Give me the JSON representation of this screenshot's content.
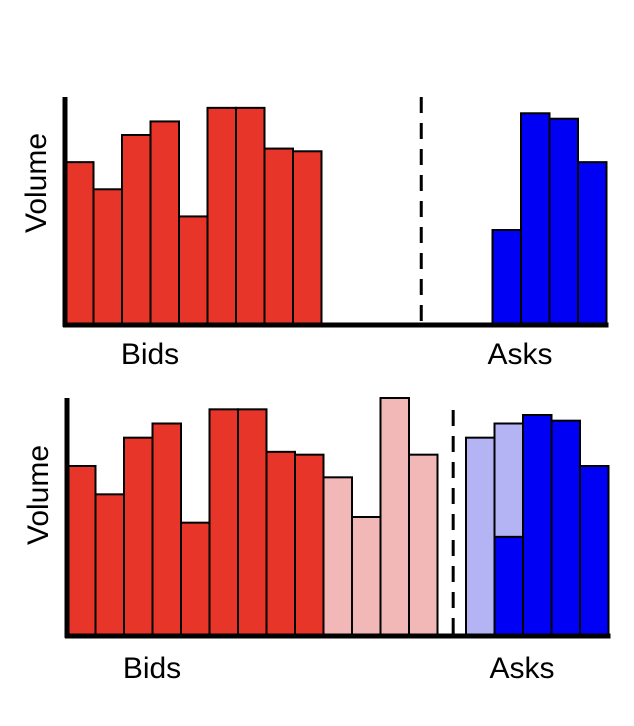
{
  "chart_data": [
    {
      "type": "bar",
      "ylabel": "Volume",
      "bids_label": "Bids",
      "asks_label": "Asks",
      "divider": "dashed",
      "slots": 19,
      "bids": [
        {
          "slot": 0,
          "value": 60,
          "shade": "dark"
        },
        {
          "slot": 1,
          "value": 50,
          "shade": "dark"
        },
        {
          "slot": 2,
          "value": 70,
          "shade": "dark"
        },
        {
          "slot": 3,
          "value": 75,
          "shade": "dark"
        },
        {
          "slot": 4,
          "value": 40,
          "shade": "dark"
        },
        {
          "slot": 5,
          "value": 80,
          "shade": "dark"
        },
        {
          "slot": 6,
          "value": 80,
          "shade": "dark"
        },
        {
          "slot": 7,
          "value": 65,
          "shade": "dark"
        },
        {
          "slot": 8,
          "value": 64,
          "shade": "dark"
        }
      ],
      "asks": [
        {
          "slot": 15,
          "value": 35,
          "shade": "dark"
        },
        {
          "slot": 16,
          "value": 78,
          "shade": "dark"
        },
        {
          "slot": 17,
          "value": 76,
          "shade": "dark"
        },
        {
          "slot": 18,
          "value": 60,
          "shade": "dark"
        }
      ],
      "divider_slot": 12
    },
    {
      "type": "bar",
      "ylabel": "Volume",
      "bids_label": "Bids",
      "asks_label": "Asks",
      "divider": "dashed",
      "slots": 19,
      "bids": [
        {
          "slot": 0,
          "value": 60,
          "shade": "dark"
        },
        {
          "slot": 1,
          "value": 50,
          "shade": "dark"
        },
        {
          "slot": 2,
          "value": 70,
          "shade": "dark"
        },
        {
          "slot": 3,
          "value": 75,
          "shade": "dark"
        },
        {
          "slot": 4,
          "value": 40,
          "shade": "dark"
        },
        {
          "slot": 5,
          "value": 80,
          "shade": "dark"
        },
        {
          "slot": 6,
          "value": 80,
          "shade": "dark"
        },
        {
          "slot": 7,
          "value": 65,
          "shade": "dark"
        },
        {
          "slot": 8,
          "value": 64,
          "shade": "dark"
        },
        {
          "slot": 9,
          "value": 56,
          "shade": "light"
        },
        {
          "slot": 10,
          "value": 42,
          "shade": "light"
        },
        {
          "slot": 11,
          "value": 84,
          "shade": "light"
        },
        {
          "slot": 12,
          "value": 64,
          "shade": "light"
        }
      ],
      "asks": [
        {
          "slot": 14,
          "value": 70,
          "shade": "light"
        },
        {
          "slot": 15,
          "value": 75,
          "shade": "light",
          "dark_value": 35
        },
        {
          "slot": 16,
          "value": 78,
          "shade": "dark"
        },
        {
          "slot": 17,
          "value": 76,
          "shade": "dark"
        },
        {
          "slot": 18,
          "value": 60,
          "shade": "dark"
        }
      ],
      "divider_slot": 13.05
    }
  ],
  "colors": {
    "bid_dark": "#e8352a",
    "bid_light": "#f2b8b8",
    "ask_dark": "#0000f5",
    "ask_light": "#b4b4f4",
    "axis": "#000000"
  }
}
